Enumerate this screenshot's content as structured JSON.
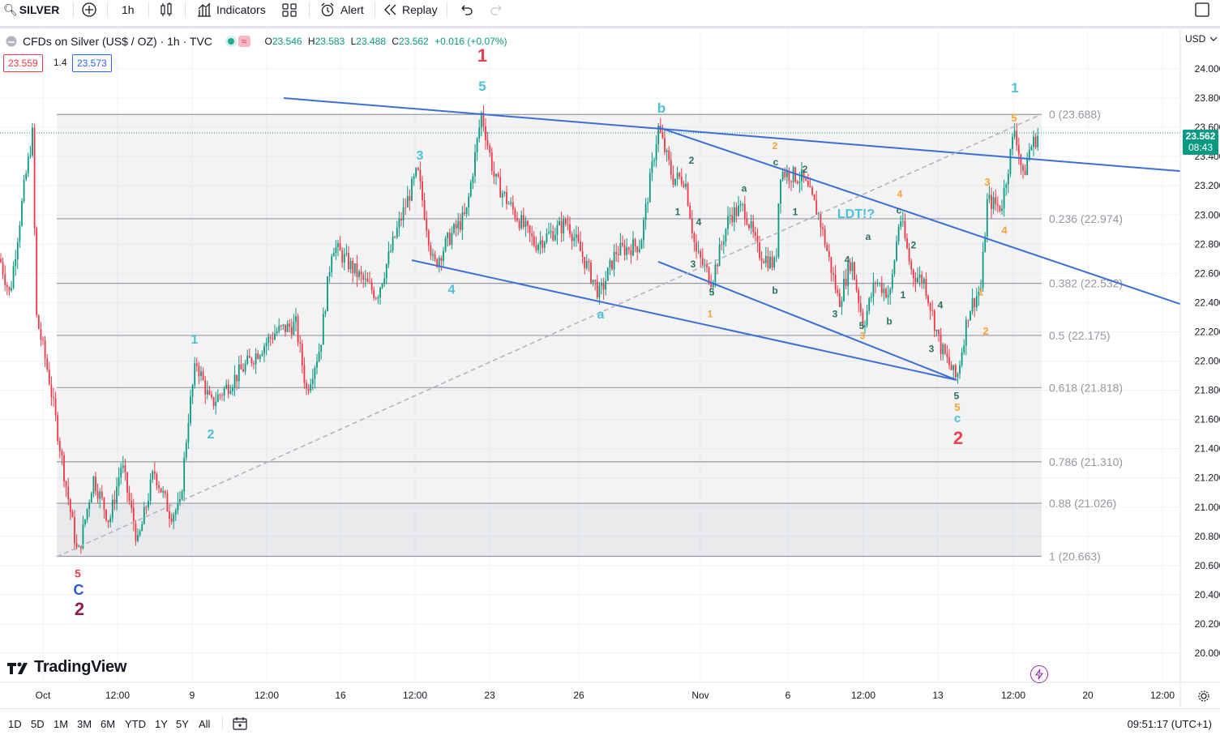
{
  "toolbar": {
    "symbol": "SILVER",
    "interval": "1h",
    "indicators_label": "Indicators",
    "alert_label": "Alert",
    "replay_label": "Replay"
  },
  "legend": {
    "title": "CFDs on Silver (US$ / OZ) · 1h · TVC",
    "open_label": "O",
    "open": "23.546",
    "high_label": "H",
    "high": "23.583",
    "low_label": "L",
    "low": "23.488",
    "close_label": "C",
    "close": "23.562",
    "change": "+0.016 (+0.07%)",
    "bid": "23.559",
    "spread": "1.4",
    "ask": "23.573"
  },
  "axis": {
    "currency": "USD",
    "current_price": "23.562",
    "countdown": "08:43"
  },
  "branding": {
    "name": "TradingView"
  },
  "timeframes": [
    "1D",
    "5D",
    "1M",
    "3M",
    "6M",
    "YTD",
    "1Y",
    "5Y",
    "All"
  ],
  "clock": "09:51:17 (UTC+1)",
  "colors": {
    "up": "#089981",
    "down": "#f23645",
    "trendline": "#3c6fd6",
    "fib": "#b2b5be",
    "cyan": "#4cc0d6",
    "orange": "#f7a233",
    "red": "#e8404f",
    "teal": "#2a6f60",
    "blue": "#2e5cc9",
    "maroon": "#8e1d4e"
  },
  "chart_data": {
    "type": "candlestick",
    "symbol": "SILVER",
    "interval": "1h",
    "y_ticks": [
      20.0,
      20.2,
      20.4,
      20.6,
      20.8,
      21.0,
      21.2,
      21.4,
      21.6,
      21.8,
      22.0,
      22.2,
      22.4,
      22.6,
      22.8,
      23.0,
      23.2,
      23.4,
      23.6,
      23.8,
      24.0
    ],
    "x_tick_labels": [
      "Oct",
      "12:00",
      "9",
      "12:00",
      "16",
      "12:00",
      "23",
      "26",
      "Nov",
      "6",
      "12:00",
      "13",
      "12:00",
      "20",
      "12:00"
    ],
    "price_path": [
      [
        0,
        22.7
      ],
      [
        12,
        22.45
      ],
      [
        30,
        23.2
      ],
      [
        40,
        23.55
      ],
      [
        45,
        22.3
      ],
      [
        60,
        21.9
      ],
      [
        80,
        21.2
      ],
      [
        96,
        20.66
      ],
      [
        115,
        21.2
      ],
      [
        135,
        20.9
      ],
      [
        150,
        21.3
      ],
      [
        170,
        20.75
      ],
      [
        190,
        21.25
      ],
      [
        210,
        20.95
      ],
      [
        222,
        21.0
      ],
      [
        232,
        21.6
      ],
      [
        242,
        22.0
      ],
      [
        260,
        21.7
      ],
      [
        300,
        21.95
      ],
      [
        340,
        22.2
      ],
      [
        365,
        22.25
      ],
      [
        378,
        21.8
      ],
      [
        395,
        22.1
      ],
      [
        410,
        22.8
      ],
      [
        440,
        22.6
      ],
      [
        465,
        22.45
      ],
      [
        490,
        22.9
      ],
      [
        515,
        23.3
      ],
      [
        535,
        22.65
      ],
      [
        555,
        22.85
      ],
      [
        575,
        23.0
      ],
      [
        594,
        23.7
      ],
      [
        610,
        23.25
      ],
      [
        625,
        23.1
      ],
      [
        660,
        22.8
      ],
      [
        700,
        22.95
      ],
      [
        740,
        22.45
      ],
      [
        760,
        22.75
      ],
      [
        790,
        22.8
      ],
      [
        812,
        23.6
      ],
      [
        830,
        23.25
      ],
      [
        845,
        23.25
      ],
      [
        858,
        22.75
      ],
      [
        878,
        22.55
      ],
      [
        900,
        23.0
      ],
      [
        918,
        23.05
      ],
      [
        935,
        22.75
      ],
      [
        957,
        22.65
      ],
      [
        962,
        23.3
      ],
      [
        990,
        23.25
      ],
      [
        1010,
        23.0
      ],
      [
        1035,
        22.4
      ],
      [
        1050,
        22.7
      ],
      [
        1065,
        22.25
      ],
      [
        1080,
        22.55
      ],
      [
        1098,
        22.45
      ],
      [
        1110,
        23.0
      ],
      [
        1125,
        22.6
      ],
      [
        1140,
        22.55
      ],
      [
        1160,
        22.1
      ],
      [
        1180,
        21.87
      ],
      [
        1195,
        22.35
      ],
      [
        1210,
        22.5
      ],
      [
        1218,
        23.1
      ],
      [
        1235,
        23.05
      ],
      [
        1252,
        23.6
      ],
      [
        1262,
        23.25
      ],
      [
        1270,
        23.45
      ],
      [
        1282,
        23.56
      ]
    ],
    "fibonacci_levels": [
      {
        "ratio": "0",
        "price": 23.688,
        "label": "0 (23.688)"
      },
      {
        "ratio": "0.236",
        "price": 22.974,
        "label": "0.236 (22.974)"
      },
      {
        "ratio": "0.382",
        "price": 22.532,
        "label": "0.382 (22.532)"
      },
      {
        "ratio": "0.5",
        "price": 22.175,
        "label": "0.5 (22.175)"
      },
      {
        "ratio": "0.618",
        "price": 21.818,
        "label": "0.618 (21.818)"
      },
      {
        "ratio": "0.786",
        "price": 21.31,
        "label": "0.786 (21.310)"
      },
      {
        "ratio": "0.88",
        "price": 21.026,
        "label": "0.88 (21.026)"
      },
      {
        "ratio": "1",
        "price": 20.663,
        "label": "1 (20.663)"
      }
    ],
    "wave_labels": [
      {
        "text": "5",
        "x": 96,
        "price": 20.52,
        "color": "red",
        "size": 14
      },
      {
        "text": "C",
        "x": 97,
        "price": 20.4,
        "color": "blue",
        "size": 18
      },
      {
        "text": "2",
        "x": 98,
        "price": 20.26,
        "color": "maroon",
        "size": 22
      },
      {
        "text": "1",
        "x": 240,
        "price": 22.12,
        "color": "cyan",
        "size": 16
      },
      {
        "text": "2",
        "x": 260,
        "price": 21.47,
        "color": "cyan",
        "size": 16
      },
      {
        "text": "3",
        "x": 518,
        "price": 23.38,
        "color": "cyan",
        "size": 16
      },
      {
        "text": "4",
        "x": 557,
        "price": 22.46,
        "color": "cyan",
        "size": 16
      },
      {
        "text": "1",
        "x": 595,
        "price": 24.05,
        "color": "red",
        "size": 22
      },
      {
        "text": "5",
        "x": 595,
        "price": 23.85,
        "color": "cyan",
        "size": 17
      },
      {
        "text": "b",
        "x": 816,
        "price": 23.7,
        "color": "cyan",
        "size": 17
      },
      {
        "text": "a",
        "x": 741,
        "price": 22.29,
        "color": "cyan",
        "size": 16
      },
      {
        "text": "LDT!?",
        "x": 1056,
        "price": 22.98,
        "color": "cyan",
        "size": 16
      },
      {
        "text": "2",
        "x": 853,
        "price": 23.35,
        "color": "teal",
        "size": 12
      },
      {
        "text": "1",
        "x": 836,
        "price": 23.0,
        "color": "teal",
        "size": 12
      },
      {
        "text": "4",
        "x": 862,
        "price": 22.93,
        "color": "teal",
        "size": 12
      },
      {
        "text": "3",
        "x": 855,
        "price": 22.64,
        "color": "teal",
        "size": 12
      },
      {
        "text": "5",
        "x": 878,
        "price": 22.45,
        "color": "teal",
        "size": 12
      },
      {
        "text": "1",
        "x": 876,
        "price": 22.3,
        "color": "orange",
        "size": 12
      },
      {
        "text": "a",
        "x": 918,
        "price": 23.16,
        "color": "teal",
        "size": 12
      },
      {
        "text": "b",
        "x": 956,
        "price": 22.46,
        "color": "teal",
        "size": 12
      },
      {
        "text": "2",
        "x": 956,
        "price": 23.45,
        "color": "orange",
        "size": 12
      },
      {
        "text": "c",
        "x": 957,
        "price": 23.34,
        "color": "teal",
        "size": 12
      },
      {
        "text": "2",
        "x": 993,
        "price": 23.29,
        "color": "teal",
        "size": 12
      },
      {
        "text": "1",
        "x": 981,
        "price": 23.0,
        "color": "teal",
        "size": 12
      },
      {
        "text": "4",
        "x": 1045,
        "price": 22.67,
        "color": "teal",
        "size": 12
      },
      {
        "text": "3",
        "x": 1030,
        "price": 22.3,
        "color": "teal",
        "size": 12
      },
      {
        "text": "5",
        "x": 1063,
        "price": 22.22,
        "color": "teal",
        "size": 12
      },
      {
        "text": "3",
        "x": 1064,
        "price": 22.15,
        "color": "orange",
        "size": 12
      },
      {
        "text": "a",
        "x": 1071,
        "price": 22.83,
        "color": "teal",
        "size": 12
      },
      {
        "text": "b",
        "x": 1097,
        "price": 22.25,
        "color": "teal",
        "size": 12
      },
      {
        "text": "1",
        "x": 1114,
        "price": 22.43,
        "color": "teal",
        "size": 12
      },
      {
        "text": "4",
        "x": 1110,
        "price": 23.12,
        "color": "orange",
        "size": 12
      },
      {
        "text": "c",
        "x": 1109,
        "price": 23.01,
        "color": "teal",
        "size": 12
      },
      {
        "text": "2",
        "x": 1127,
        "price": 22.77,
        "color": "teal",
        "size": 12
      },
      {
        "text": "4",
        "x": 1160,
        "price": 22.36,
        "color": "teal",
        "size": 12
      },
      {
        "text": "3",
        "x": 1149,
        "price": 22.06,
        "color": "teal",
        "size": 12
      },
      {
        "text": "5",
        "x": 1180,
        "price": 21.74,
        "color": "teal",
        "size": 12
      },
      {
        "text": "5",
        "x": 1181,
        "price": 21.66,
        "color": "orange",
        "size": 13
      },
      {
        "text": "c",
        "x": 1181,
        "price": 21.58,
        "color": "cyan",
        "size": 15
      },
      {
        "text": "2",
        "x": 1182,
        "price": 21.43,
        "color": "red",
        "size": 22
      },
      {
        "text": "1",
        "x": 1210,
        "price": 22.45,
        "color": "orange",
        "size": 12
      },
      {
        "text": "2",
        "x": 1216,
        "price": 22.18,
        "color": "orange",
        "size": 13
      },
      {
        "text": "3",
        "x": 1218,
        "price": 23.2,
        "color": "orange",
        "size": 13
      },
      {
        "text": "4",
        "x": 1239,
        "price": 22.87,
        "color": "orange",
        "size": 13
      },
      {
        "text": "5",
        "x": 1251,
        "price": 23.64,
        "color": "orange",
        "size": 13
      },
      {
        "text": "1",
        "x": 1252,
        "price": 23.84,
        "color": "cyan",
        "size": 17
      }
    ],
    "trendlines": [
      {
        "x1": 350,
        "p1": 23.8,
        "x2": 1456,
        "p2": 23.3
      },
      {
        "x1": 508,
        "p1": 22.69,
        "x2": 1180,
        "p2": 21.87
      },
      {
        "x1": 812,
        "p1": 22.68,
        "x2": 1180,
        "p2": 21.87
      },
      {
        "x1": 812,
        "p1": 23.6,
        "x2": 1456,
        "p2": 22.39
      },
      {
        "x1": 70,
        "p1": 20.66,
        "x2": 1285,
        "p2": 23.69,
        "dashed": true
      }
    ]
  }
}
